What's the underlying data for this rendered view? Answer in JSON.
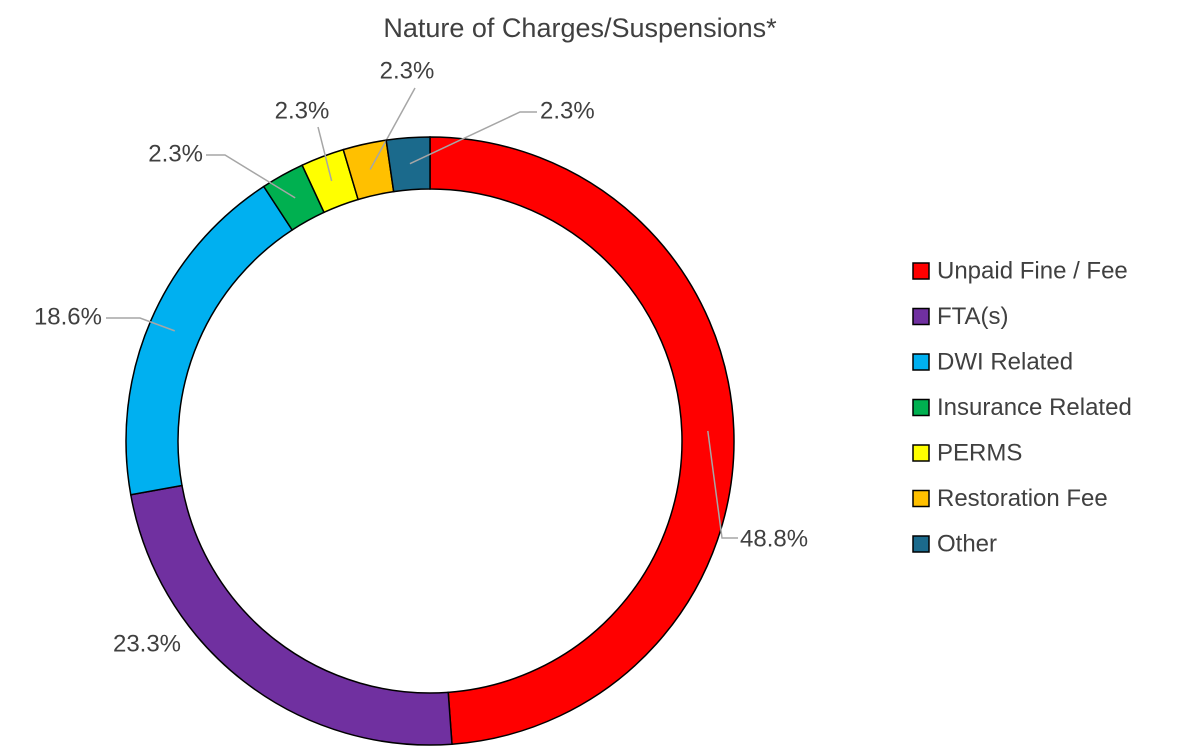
{
  "chart_data": {
    "type": "donut",
    "title": "Nature of Charges/Suspensions*",
    "categories": [
      "Unpaid Fine / Fee",
      "FTA(s)",
      "DWI Related",
      "Insurance Related",
      "PERMS",
      "Restoration Fee",
      "Other"
    ],
    "values": [
      48.8,
      23.3,
      18.6,
      2.3,
      2.3,
      2.3,
      2.3
    ],
    "value_labels": [
      "48.8%",
      "23.3%",
      "18.6%",
      "2.3%",
      "2.3%",
      "2.3%",
      "2.3%"
    ],
    "colors": [
      "#ff0000",
      "#7030a0",
      "#00b0f0",
      "#00b050",
      "#ffff00",
      "#ffc000",
      "#1b6a8c"
    ],
    "legend": "right"
  }
}
